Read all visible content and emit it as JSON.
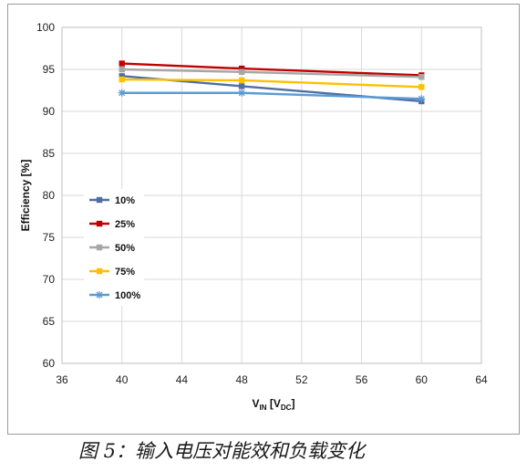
{
  "caption": "图 5：输入电压对能效和负载变化",
  "chart_data": {
    "type": "line",
    "xlabel": {
      "main": "V",
      "sub1": "IN",
      "mid": " [V",
      "sub2": "DC",
      "end": "]"
    },
    "ylabel": "Efficiency [%]",
    "xlim": [
      36,
      64
    ],
    "ylim": [
      60,
      100
    ],
    "x_ticks": [
      36,
      40,
      44,
      48,
      52,
      56,
      60,
      64
    ],
    "y_ticks": [
      60,
      65,
      70,
      75,
      80,
      85,
      90,
      95,
      100
    ],
    "grid": true,
    "legend_position": "left-middle",
    "x": [
      40,
      48,
      60
    ],
    "series": [
      {
        "name": "10%",
        "values": [
          94.2,
          93.0,
          91.2
        ],
        "color": "#4f6fa3",
        "marker": "square"
      },
      {
        "name": "25%",
        "values": [
          95.7,
          95.1,
          94.3
        ],
        "color": "#c00000",
        "marker": "square"
      },
      {
        "name": "50%",
        "values": [
          95.0,
          94.7,
          94.1
        ],
        "color": "#a6a6a6",
        "marker": "square"
      },
      {
        "name": "75%",
        "values": [
          93.8,
          93.7,
          92.9
        ],
        "color": "#ffc000",
        "marker": "square"
      },
      {
        "name": "100%",
        "values": [
          92.2,
          92.2,
          91.5
        ],
        "color": "#5b9bd5",
        "marker": "star"
      }
    ]
  }
}
